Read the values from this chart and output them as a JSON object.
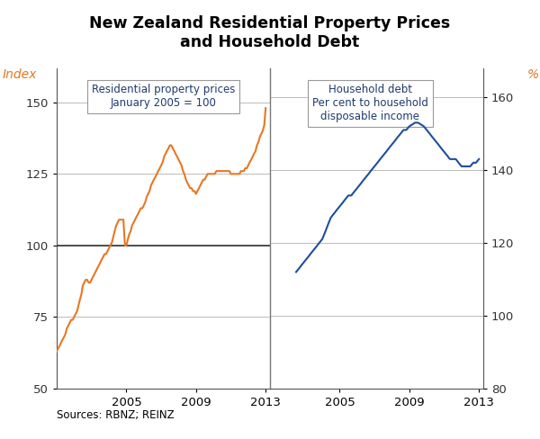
{
  "title": "New Zealand Residential Property Prices\nand Household Debt",
  "left_label": "Index",
  "right_label": "%",
  "source_text": "Sources: RBNZ; REINZ",
  "left_panel_text": "Residential property prices\nJanuary 2005 = 100",
  "right_panel_text": "Household debt\nPer cent to household\ndisposable income",
  "left_ylim": [
    50,
    162
  ],
  "right_ylim": [
    80,
    168
  ],
  "left_yticks": [
    50,
    75,
    100,
    125,
    150
  ],
  "right_yticks": [
    80,
    100,
    120,
    140,
    160
  ],
  "orange_color": "#E87722",
  "blue_color": "#1F4E9C",
  "text_color": "#1F3A6E",
  "property_x": [
    2001.0,
    2001.08,
    2001.17,
    2001.25,
    2001.33,
    2001.42,
    2001.5,
    2001.58,
    2001.67,
    2001.75,
    2001.83,
    2001.92,
    2002.0,
    2002.08,
    2002.17,
    2002.25,
    2002.33,
    2002.42,
    2002.5,
    2002.58,
    2002.67,
    2002.75,
    2002.83,
    2002.92,
    2003.0,
    2003.08,
    2003.17,
    2003.25,
    2003.33,
    2003.42,
    2003.5,
    2003.58,
    2003.67,
    2003.75,
    2003.83,
    2003.92,
    2004.0,
    2004.08,
    2004.17,
    2004.25,
    2004.33,
    2004.42,
    2004.5,
    2004.58,
    2004.67,
    2004.75,
    2004.83,
    2004.92,
    2005.0,
    2005.08,
    2005.17,
    2005.25,
    2005.33,
    2005.42,
    2005.5,
    2005.58,
    2005.67,
    2005.75,
    2005.83,
    2005.92,
    2006.0,
    2006.08,
    2006.17,
    2006.25,
    2006.33,
    2006.42,
    2006.5,
    2006.58,
    2006.67,
    2006.75,
    2006.83,
    2006.92,
    2007.0,
    2007.08,
    2007.17,
    2007.25,
    2007.33,
    2007.42,
    2007.5,
    2007.58,
    2007.67,
    2007.75,
    2007.83,
    2007.92,
    2008.0,
    2008.08,
    2008.17,
    2008.25,
    2008.33,
    2008.42,
    2008.5,
    2008.58,
    2008.67,
    2008.75,
    2008.83,
    2008.92,
    2009.0,
    2009.08,
    2009.17,
    2009.25,
    2009.33,
    2009.42,
    2009.5,
    2009.58,
    2009.67,
    2009.75,
    2009.83,
    2009.92,
    2010.0,
    2010.08,
    2010.17,
    2010.25,
    2010.33,
    2010.42,
    2010.5,
    2010.58,
    2010.67,
    2010.75,
    2010.83,
    2010.92,
    2011.0,
    2011.08,
    2011.17,
    2011.25,
    2011.33,
    2011.42,
    2011.5,
    2011.58,
    2011.67,
    2011.75,
    2011.83,
    2011.92,
    2012.0,
    2012.08,
    2012.17,
    2012.25,
    2012.33,
    2012.42,
    2012.5,
    2012.58,
    2012.67,
    2012.75,
    2012.83,
    2012.92,
    2013.0
  ],
  "property_y": [
    63,
    64,
    65,
    66,
    67,
    68,
    69,
    71,
    72,
    73,
    74,
    74,
    75,
    76,
    77,
    79,
    81,
    83,
    86,
    87,
    88,
    88,
    87,
    87,
    88,
    89,
    90,
    91,
    92,
    93,
    94,
    95,
    96,
    97,
    97,
    98,
    99,
    100,
    101,
    103,
    105,
    107,
    108,
    109,
    109,
    109,
    109,
    100,
    100,
    102,
    104,
    105,
    107,
    108,
    109,
    110,
    111,
    112,
    113,
    113,
    114,
    115,
    117,
    118,
    119,
    121,
    122,
    123,
    124,
    125,
    126,
    127,
    128,
    129,
    131,
    132,
    133,
    134,
    135,
    135,
    134,
    133,
    132,
    131,
    130,
    129,
    128,
    126,
    125,
    123,
    122,
    121,
    120,
    120,
    119,
    119,
    118,
    119,
    120,
    121,
    122,
    123,
    123,
    124,
    125,
    125,
    125,
    125,
    125,
    125,
    126,
    126,
    126,
    126,
    126,
    126,
    126,
    126,
    126,
    126,
    125,
    125,
    125,
    125,
    125,
    125,
    125,
    126,
    126,
    126,
    127,
    127,
    128,
    129,
    130,
    131,
    132,
    133,
    135,
    136,
    138,
    139,
    140,
    142,
    148
  ],
  "debt_x": [
    2002.5,
    2002.67,
    2002.83,
    2003.0,
    2003.17,
    2003.33,
    2003.5,
    2003.67,
    2003.83,
    2004.0,
    2004.17,
    2004.33,
    2004.5,
    2004.67,
    2004.83,
    2005.0,
    2005.17,
    2005.33,
    2005.5,
    2005.67,
    2005.83,
    2006.0,
    2006.17,
    2006.33,
    2006.5,
    2006.67,
    2006.83,
    2007.0,
    2007.17,
    2007.33,
    2007.5,
    2007.67,
    2007.83,
    2008.0,
    2008.17,
    2008.33,
    2008.5,
    2008.67,
    2008.83,
    2009.0,
    2009.17,
    2009.33,
    2009.5,
    2009.67,
    2009.83,
    2010.0,
    2010.17,
    2010.33,
    2010.5,
    2010.67,
    2010.83,
    2011.0,
    2011.17,
    2011.33,
    2011.5,
    2011.67,
    2011.83,
    2012.0,
    2012.17,
    2012.33,
    2012.5,
    2012.67,
    2012.83,
    2013.0
  ],
  "debt_y": [
    112,
    113,
    114,
    115,
    116,
    117,
    118,
    119,
    120,
    121,
    123,
    125,
    127,
    128,
    129,
    130,
    131,
    132,
    133,
    133,
    134,
    135,
    136,
    137,
    138,
    139,
    140,
    141,
    142,
    143,
    144,
    145,
    146,
    147,
    148,
    149,
    150,
    151,
    151,
    152,
    152.5,
    153,
    153,
    152.5,
    152,
    151,
    150,
    149,
    148,
    147,
    146,
    145,
    144,
    143,
    143,
    143,
    142,
    141,
    141,
    141,
    141,
    142,
    142,
    143
  ],
  "xlim": [
    2001.0,
    2013.25
  ],
  "xticks": [
    2005,
    2009,
    2013
  ],
  "xticklabels": [
    "2005",
    "2009",
    "2013"
  ]
}
